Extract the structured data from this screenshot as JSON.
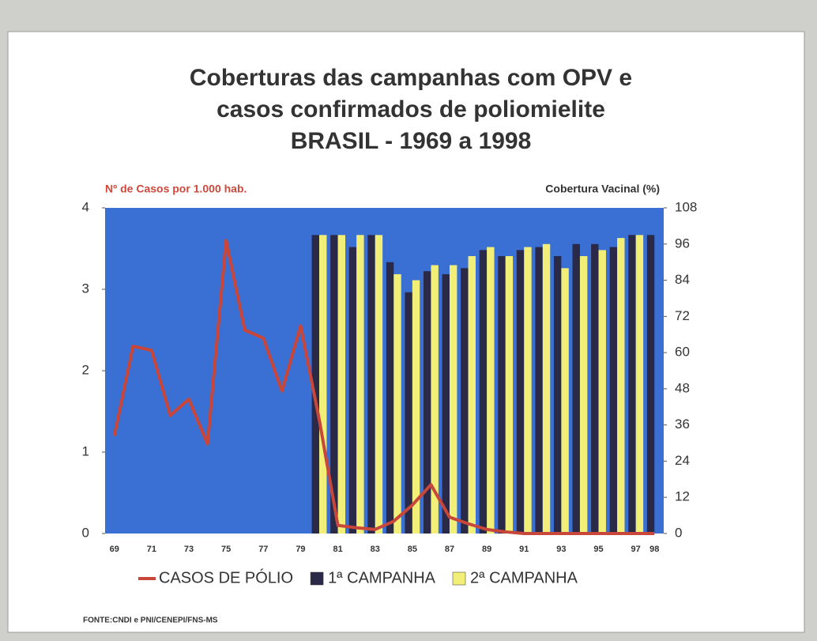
{
  "chart_data": {
    "type": "bar_line",
    "title": [
      "Coberturas das campanhas com OPV e",
      "casos confirmados de poliomielite",
      "BRASIL -  1969 a 1998"
    ],
    "ylabel": "Nº de Casos por 1.000 hab.",
    "y2label": "Cobertura Vacinal (%)",
    "source": "FONTE:CNDI e PNI/CENEPI/FNS-MS",
    "categories": [
      "69",
      null,
      "71",
      null,
      "73",
      null,
      "75",
      null,
      "77",
      null,
      "79",
      null,
      "81",
      null,
      "83",
      null,
      "85",
      null,
      "87",
      null,
      "89",
      null,
      "91",
      null,
      "93",
      null,
      "95",
      null,
      "97",
      "98"
    ],
    "ylim": [
      0,
      4
    ],
    "yticks": [
      0,
      1,
      2,
      3,
      4
    ],
    "y2lim": [
      0,
      108
    ],
    "y2ticks": [
      0,
      12,
      24,
      36,
      48,
      60,
      72,
      84,
      96,
      108
    ],
    "background": "#3a6fd3",
    "series": [
      {
        "name": "CASOS DE PÓLIO",
        "type": "line",
        "color": "#c8463a",
        "axis": "y",
        "values": [
          1.2,
          2.3,
          2.25,
          1.45,
          1.65,
          1.1,
          3.6,
          2.5,
          2.4,
          1.75,
          2.55,
          1.4,
          0.1,
          0.07,
          0.05,
          0.15,
          0.35,
          0.6,
          0.2,
          0.12,
          0.05,
          0.02,
          0,
          0,
          0,
          0,
          0,
          0,
          0,
          0
        ]
      },
      {
        "name": "1ª CAMPANHA",
        "type": "bar",
        "color": "#2a2a48",
        "axis": "y2",
        "values": [
          null,
          null,
          null,
          null,
          null,
          null,
          null,
          null,
          null,
          null,
          null,
          99,
          99,
          95,
          99,
          90,
          80,
          87,
          86,
          88,
          94,
          92,
          94,
          95,
          92,
          96,
          96,
          95,
          99,
          99
        ]
      },
      {
        "name": "2ª CAMPANHA",
        "type": "bar",
        "color": "#f2ef78",
        "axis": "y2",
        "values": [
          null,
          null,
          null,
          null,
          null,
          null,
          null,
          null,
          null,
          null,
          null,
          99,
          99,
          99,
          99,
          86,
          84,
          89,
          89,
          92,
          95,
          92,
          95,
          96,
          88,
          92,
          94,
          98,
          99,
          null
        ]
      }
    ]
  }
}
